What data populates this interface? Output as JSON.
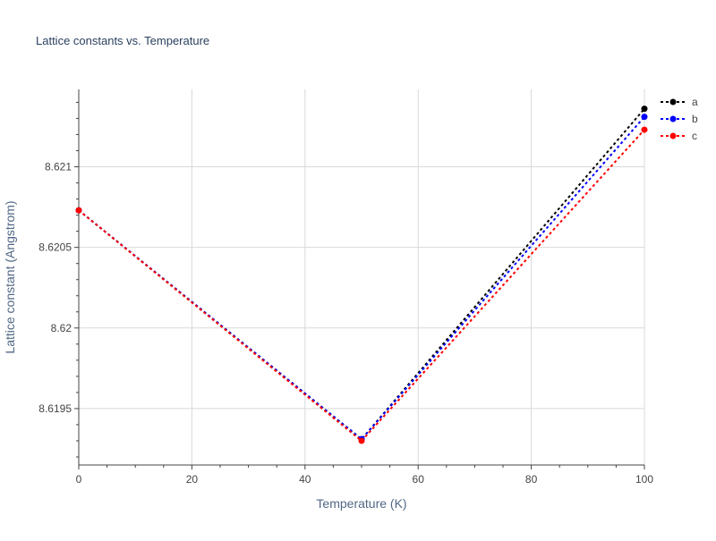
{
  "chart_data": {
    "type": "line",
    "title": "Lattice constants vs. Temperature",
    "xlabel": "Temperature (K)",
    "ylabel": "Lattice constant (Angstrom)",
    "x": [
      0,
      50,
      100
    ],
    "xlim": [
      0,
      100
    ],
    "ylim": [
      8.61915,
      8.62148
    ],
    "xticks": [
      0,
      20,
      40,
      60,
      80,
      100
    ],
    "xtick_labels": [
      "0",
      "20",
      "40",
      "60",
      "80",
      "100"
    ],
    "yticks": [
      8.6195,
      8.62,
      8.6205,
      8.621
    ],
    "ytick_labels": [
      "8.6195",
      "8.62",
      "8.6205",
      "8.621"
    ],
    "grid": true,
    "legend_position": "top-right",
    "series": [
      {
        "name": "a",
        "color": "#000000",
        "values": [
          8.62073,
          8.61931,
          8.62136
        ]
      },
      {
        "name": "b",
        "color": "#0000ff",
        "values": [
          8.62073,
          8.61931,
          8.62131
        ]
      },
      {
        "name": "c",
        "color": "#ff0000",
        "values": [
          8.62073,
          8.6193,
          8.62123
        ]
      }
    ]
  }
}
